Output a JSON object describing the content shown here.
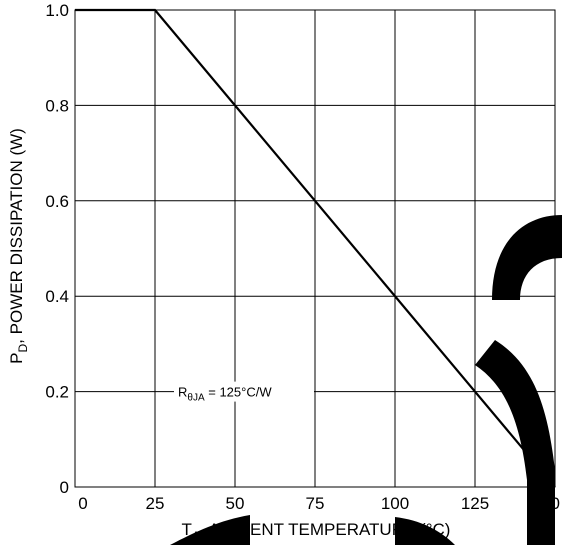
{
  "chart_data": {
    "type": "line",
    "xlabel": {
      "main": "T",
      "sub": "A",
      "rest": ", AMBIENT TEMPERATURE (°C)"
    },
    "ylabel": {
      "main": "P",
      "sub": "D",
      "rest": ", POWER DISSIPATION (W)"
    },
    "xlim": [
      0,
      150
    ],
    "ylim": [
      0,
      1.0
    ],
    "x_ticks": [
      "0",
      "25",
      "50",
      "75",
      "100",
      "125",
      "150"
    ],
    "y_ticks": [
      "0",
      "0.2",
      "0.4",
      "0.6",
      "0.8",
      "1.0"
    ],
    "grid": true,
    "series": [
      {
        "x": [
          0,
          25,
          150
        ],
        "y": [
          1.0,
          1.0,
          0.0
        ]
      }
    ],
    "annotation": {
      "main": "R",
      "sub": "θJA",
      "rest": " = 125°C/W",
      "y": 0.2
    },
    "colors": {
      "line": "#000000",
      "grid": "#000000",
      "watermark": "#000000"
    }
  }
}
